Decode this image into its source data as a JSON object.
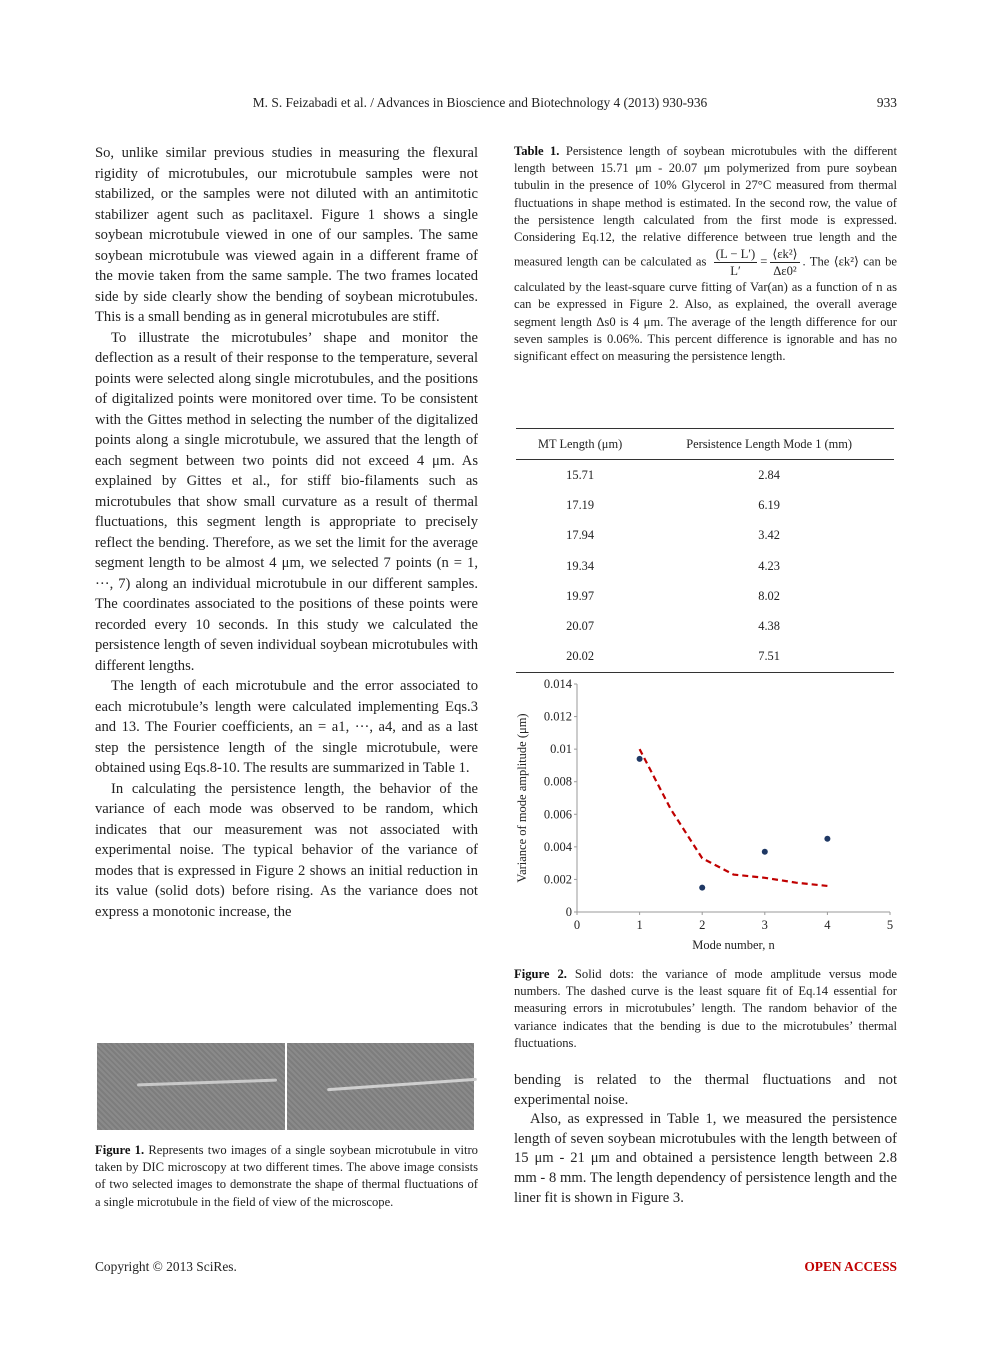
{
  "header": {
    "running_title": "M. S. Feizabadi et al. / Advances in Bioscience and Biotechnology 4 (2013) 930-936",
    "page_number": "933"
  },
  "left_column": {
    "paragraphs": [
      "So, unlike similar previous studies in measuring the flexural rigidity of microtubules, our microtubule samples were not stabilized, or the samples were not diluted with an antimitotic stabilizer agent such as paclitaxel. Figure 1 shows a single soybean microtubule viewed in one of our samples. The same soybean microtubule was viewed again in a different frame of the movie taken from the same sample. The two frames located side by side clearly show the bending of soybean microtubules. This is a small bending as in general microtubules are stiff.",
      "To illustrate the microtubules’ shape and monitor the deflection as a result of their response to the temperature, several points were selected along single microtubules, and the positions of digitalized points were monitored over time. To be consistent with the Gittes method in selecting the number of the digitalized points along a single microtubule, we assured that the length of each segment between two points did not exceed 4 μm. As explained by Gittes et al., for stiff bio-filaments such as microtubules that show small curvature as a result of thermal fluctuations, this segment length is appropriate to precisely reflect the bending. Therefore, as we set the limit for the average segment length to be almost 4 μm, we selected 7 points (n = 1, ···, 7) along an individual microtubule in our different samples. The coordinates associated to the positions of these points were recorded every 10 seconds. In this study we calculated the persistence length of seven individual soybean microtubules with different lengths.",
      "The length of each microtubule and the error associated to each microtubule’s length were calculated implementing Eqs.3 and 13. The Fourier coefficients, an = a1, ···, a4, and as a last step the persistence length of the single microtubule, were obtained using Eqs.8-10. The results are summarized in Table 1.",
      "In calculating the persistence length, the behavior of the variance of each mode was observed to be random, which indicates that our measurement was not associated with experimental noise. The typical behavior of the variance of modes that is expressed in Figure 2 shows an initial reduction in its value (solid dots) before rising. As the variance does not express a monotonic increase, the"
    ]
  },
  "figure_1": {
    "label": "Figure 1.",
    "caption": "Represents two images of a single soybean microtubule in vitro taken by DIC microscopy at two different times. The above image consists of two selected images to demonstrate the shape of thermal fluctuations of a single microtubule in the field of view of the microscope."
  },
  "table_1": {
    "label": "Table 1.",
    "caption_before": "Persistence length of soybean microtubules with the different length between 15.71 μm - 20.07 μm polymerized from pure soybean tubulin in the presence of 10% Glycerol in 27°C measured from thermal fluctuations in shape method is estimated. In the second row, the value of the persistence length calculated from the first mode is expressed. Considering Eq.12, the relative difference between true length and the measured length can be calculated as",
    "equation": {
      "lhs_num": "(L − L′)",
      "lhs_den": "L′",
      "rel": "=",
      "rhs_num": "⟨εk²⟩",
      "rhs_den": "Δε0²"
    },
    "caption_middle": ". The",
    "symbol": "⟨εk²⟩",
    "caption_after": "can be calculated by the least-square curve fitting of Var(an) as a function of n as can be expressed in Figure 2. Also, as explained, the overall average segment length Δs0 is 4 μm. The average of the length difference for our seven samples is 0.06%. This percent difference is ignorable and has no significant effect on measuring the persistence length.",
    "columns": [
      "MT Length (μm)",
      "Persistence Length Mode 1 (mm)"
    ],
    "rows": [
      [
        "15.71",
        "2.84"
      ],
      [
        "17.19",
        "6.19"
      ],
      [
        "17.94",
        "3.42"
      ],
      [
        "19.34",
        "4.23"
      ],
      [
        "19.97",
        "8.02"
      ],
      [
        "20.07",
        "4.38"
      ],
      [
        "20.02",
        "7.51"
      ]
    ]
  },
  "chart_data": {
    "type": "scatter",
    "x_label": "Mode number, n",
    "y_label": "Variance of mode amplitude (μm)",
    "xlim": [
      0,
      5
    ],
    "xticks": [
      0,
      1,
      2,
      3,
      4,
      5
    ],
    "ylim": [
      0,
      0.014
    ],
    "yticks": [
      0,
      0.002,
      0.004,
      0.006,
      0.008,
      0.01,
      0.012,
      0.014
    ],
    "grid": false,
    "series": [
      {
        "color": "#1f3864",
        "x": [
          1,
          2,
          3,
          4
        ],
        "values": [
          0.0094,
          0.0015,
          0.0037,
          0.0045
        ]
      },
      {
        "type": "line",
        "dashed": true,
        "color": "#c00000",
        "x": [
          1,
          1.5,
          2,
          2.5,
          3,
          3.5,
          4
        ],
        "values": [
          0.01,
          0.0063,
          0.0033,
          0.0023,
          0.0021,
          0.0018,
          0.0016
        ]
      }
    ]
  },
  "figure_2": {
    "label": "Figure 2.",
    "caption": "Solid dots: the variance of mode amplitude versus mode numbers. The dashed curve is the least square fit of Eq.14 essential for measuring errors in microtubules’ length. The random behavior of the variance indicates that the bending is due to the microtubules’ thermal fluctuations."
  },
  "right_column": {
    "paragraphs": [
      "bending is related to the thermal fluctuations and not experimental noise.",
      "Also, as expressed in Table 1, we measured the persistence length of seven soybean microtubules with the length between of 15 μm - 21 μm and obtained a persistence length between 2.8 mm - 8 mm. The length dependency of persistence length and the liner fit is shown in Figure 3."
    ]
  },
  "footer": {
    "copyright": "Copyright © 2013 SciRes.",
    "access": "OPEN ACCESS"
  }
}
